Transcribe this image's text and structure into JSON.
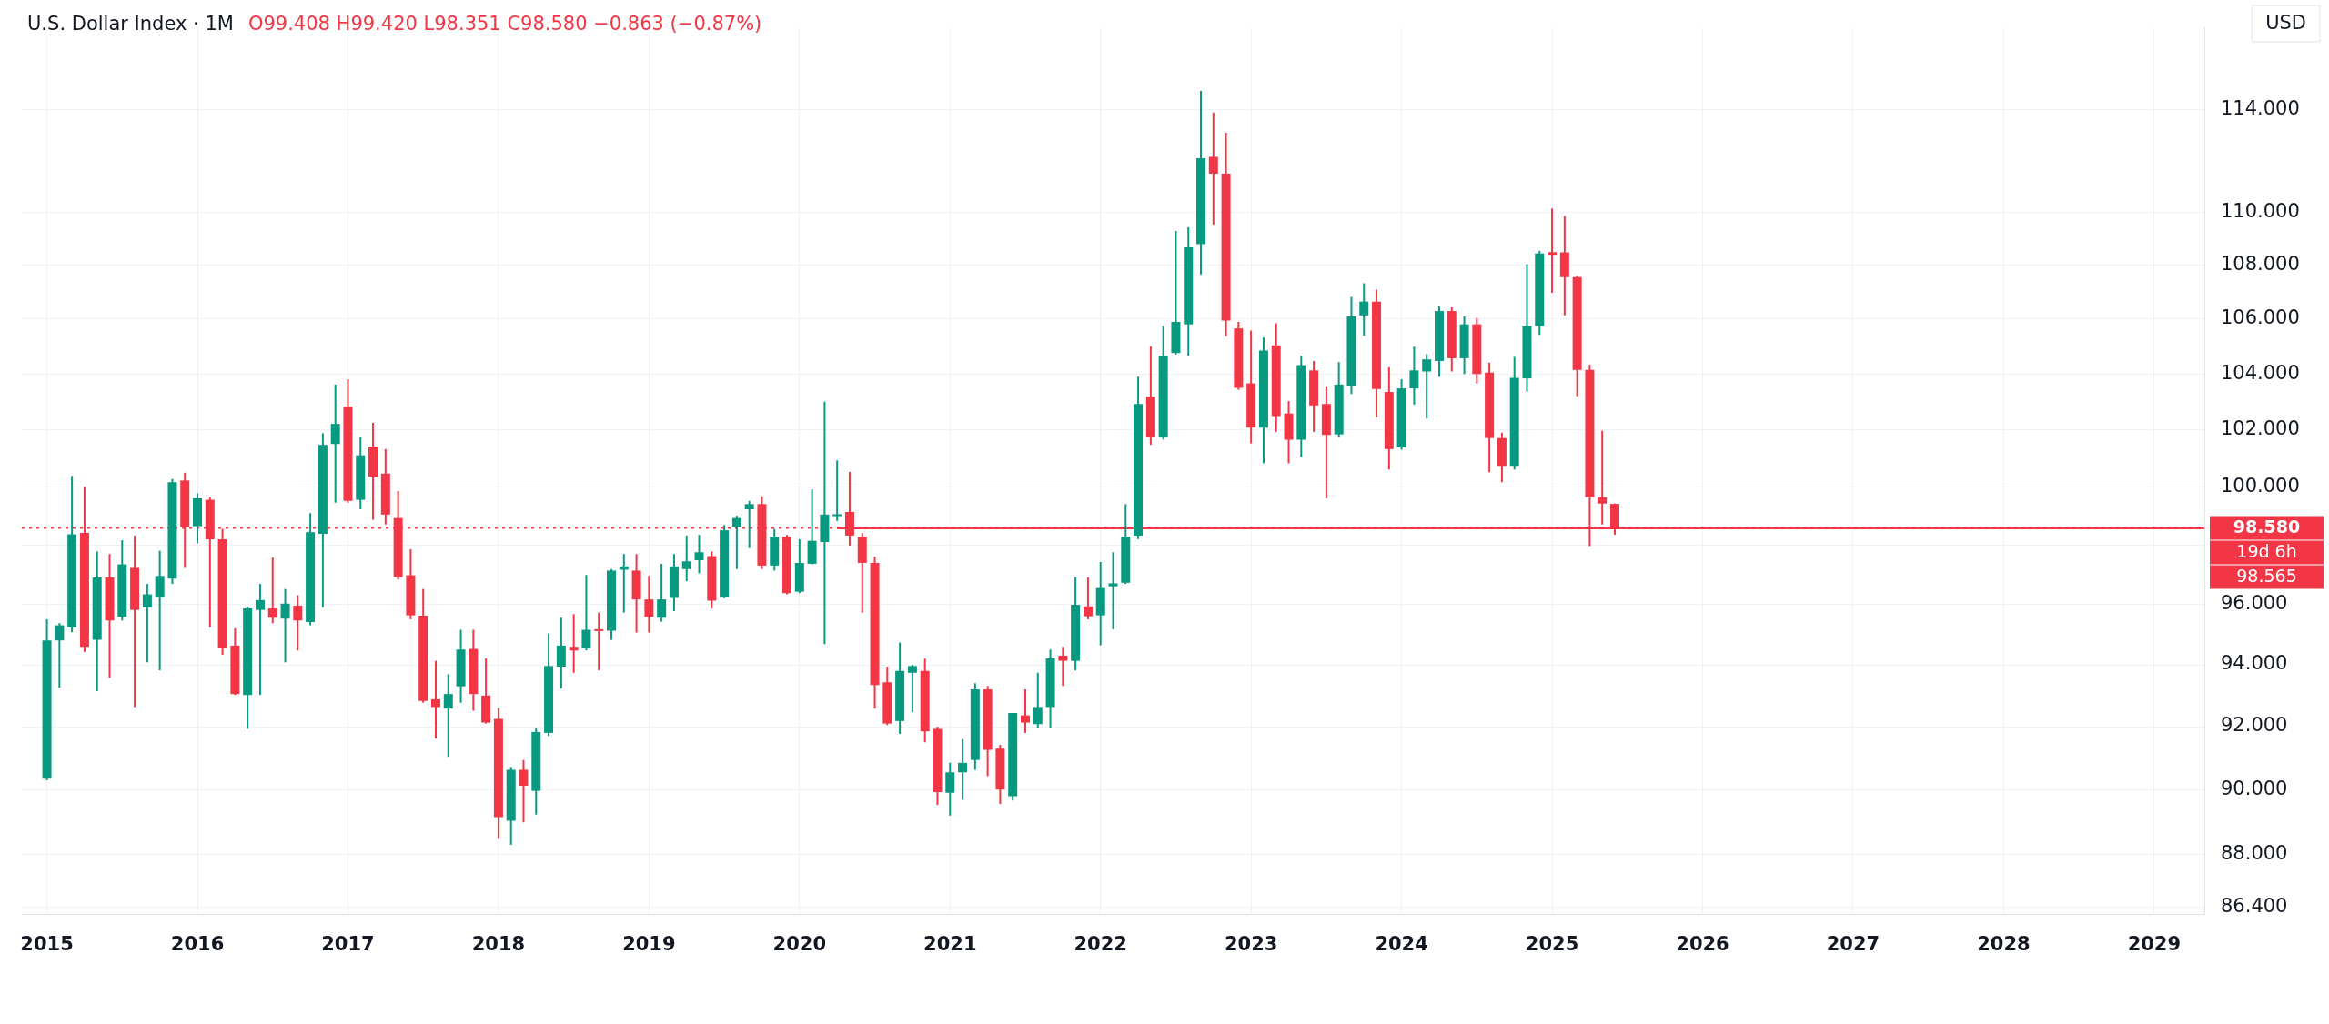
{
  "chart_data": {
    "type": "candlestick",
    "title": "U.S. Dollar Index · 1M",
    "subtitle": "O99.408 H99.420 L98.351 C98.580 −0.863 (−0.87%)",
    "ylabel": "USD",
    "x": [
      "2015-01",
      "2015-02",
      "2015-03",
      "2015-04",
      "2015-05",
      "2015-06",
      "2015-07",
      "2015-08",
      "2015-09",
      "2015-10",
      "2015-11",
      "2015-12",
      "2016-01",
      "2016-02",
      "2016-03",
      "2016-04",
      "2016-05",
      "2016-06",
      "2016-07",
      "2016-08",
      "2016-09",
      "2016-10",
      "2016-11",
      "2016-12",
      "2017-01",
      "2017-02",
      "2017-03",
      "2017-04",
      "2017-05",
      "2017-06",
      "2017-07",
      "2017-08",
      "2017-09",
      "2017-10",
      "2017-11",
      "2017-12",
      "2018-01",
      "2018-02",
      "2018-03",
      "2018-04",
      "2018-05",
      "2018-06",
      "2018-07",
      "2018-08",
      "2018-09",
      "2018-10",
      "2018-11",
      "2018-12",
      "2019-01",
      "2019-02",
      "2019-03",
      "2019-04",
      "2019-05",
      "2019-06",
      "2019-07",
      "2019-08",
      "2019-09",
      "2019-10",
      "2019-11",
      "2019-12",
      "2020-01",
      "2020-02",
      "2020-03",
      "2020-04",
      "2020-05",
      "2020-06",
      "2020-07",
      "2020-08",
      "2020-09",
      "2020-10",
      "2020-11",
      "2020-12",
      "2021-01",
      "2021-02",
      "2021-03",
      "2021-04",
      "2021-05",
      "2021-06",
      "2021-07",
      "2021-08",
      "2021-09",
      "2021-10",
      "2021-11",
      "2021-12",
      "2022-01",
      "2022-02",
      "2022-03",
      "2022-04",
      "2022-05",
      "2022-06",
      "2022-07",
      "2022-08",
      "2022-09",
      "2022-10",
      "2022-11",
      "2022-12",
      "2023-01",
      "2023-02",
      "2023-03",
      "2023-04",
      "2023-05",
      "2023-06",
      "2023-07",
      "2023-08",
      "2023-09",
      "2023-10",
      "2023-11",
      "2023-12",
      "2024-01",
      "2024-02",
      "2024-03",
      "2024-04",
      "2024-05",
      "2024-06",
      "2024-07",
      "2024-08",
      "2024-09",
      "2024-10",
      "2024-11",
      "2024-12",
      "2025-01",
      "2025-02",
      "2025-03",
      "2025-04",
      "2025-05",
      "2025-06"
    ],
    "ohlc": [
      [
        90.35,
        95.5,
        90.3,
        94.8
      ],
      [
        94.8,
        95.37,
        93.26,
        95.3
      ],
      [
        95.23,
        100.38,
        95.07,
        98.36
      ],
      [
        98.41,
        100.0,
        94.42,
        94.59
      ],
      [
        94.82,
        97.78,
        93.14,
        96.9
      ],
      [
        96.9,
        97.69,
        93.57,
        95.46
      ],
      [
        95.58,
        98.16,
        95.46,
        97.34
      ],
      [
        97.22,
        98.32,
        92.63,
        95.81
      ],
      [
        95.9,
        96.68,
        94.08,
        96.33
      ],
      [
        96.24,
        97.8,
        93.82,
        96.95
      ],
      [
        96.86,
        100.27,
        96.68,
        100.16
      ],
      [
        100.22,
        100.49,
        97.22,
        98.61
      ],
      [
        98.64,
        99.78,
        98.05,
        99.6
      ],
      [
        99.55,
        99.64,
        95.23,
        98.19
      ],
      [
        98.19,
        98.55,
        94.33,
        94.56
      ],
      [
        94.63,
        95.2,
        93.02,
        93.05
      ],
      [
        93.02,
        95.9,
        91.93,
        95.86
      ],
      [
        95.81,
        96.68,
        93.02,
        96.14
      ],
      [
        95.86,
        97.57,
        95.37,
        95.55
      ],
      [
        95.52,
        96.51,
        94.08,
        96.02
      ],
      [
        95.95,
        96.3,
        94.47,
        95.46
      ],
      [
        95.41,
        99.09,
        95.3,
        98.43
      ],
      [
        98.38,
        101.88,
        95.9,
        101.47
      ],
      [
        101.5,
        103.62,
        99.45,
        102.21
      ],
      [
        102.83,
        103.81,
        99.45,
        99.51
      ],
      [
        99.55,
        101.75,
        99.22,
        101.1
      ],
      [
        101.41,
        102.25,
        98.86,
        100.35
      ],
      [
        100.46,
        101.32,
        98.7,
        99.04
      ],
      [
        98.92,
        99.85,
        96.83,
        96.91
      ],
      [
        96.97,
        97.85,
        95.5,
        95.63
      ],
      [
        95.62,
        96.51,
        92.77,
        92.83
      ],
      [
        92.88,
        94.13,
        91.62,
        92.63
      ],
      [
        92.58,
        93.69,
        91.04,
        93.05
      ],
      [
        93.3,
        95.15,
        92.77,
        94.5
      ],
      [
        94.52,
        95.15,
        92.51,
        93.05
      ],
      [
        93.0,
        94.21,
        92.1,
        92.13
      ],
      [
        92.25,
        92.6,
        88.48,
        89.15
      ],
      [
        89.04,
        90.72,
        88.3,
        90.63
      ],
      [
        90.63,
        90.94,
        88.99,
        90.13
      ],
      [
        89.97,
        91.97,
        89.23,
        91.83
      ],
      [
        91.8,
        95.03,
        91.7,
        93.96
      ],
      [
        93.94,
        95.55,
        93.23,
        94.63
      ],
      [
        94.59,
        95.67,
        93.74,
        94.47
      ],
      [
        94.54,
        96.98,
        94.47,
        95.15
      ],
      [
        95.17,
        95.72,
        93.82,
        95.15
      ],
      [
        95.12,
        97.18,
        94.82,
        97.13
      ],
      [
        97.16,
        97.69,
        95.72,
        97.27
      ],
      [
        97.13,
        97.69,
        95.06,
        96.16
      ],
      [
        96.16,
        96.95,
        95.06,
        95.58
      ],
      [
        95.55,
        97.36,
        95.42,
        96.16
      ],
      [
        96.21,
        97.69,
        95.77,
        97.27
      ],
      [
        97.18,
        98.32,
        96.77,
        97.44
      ],
      [
        97.48,
        98.34,
        97.04,
        97.75
      ],
      [
        97.62,
        97.78,
        95.86,
        96.12
      ],
      [
        96.24,
        98.68,
        96.2,
        98.5
      ],
      [
        98.61,
        99.0,
        97.18,
        98.92
      ],
      [
        99.22,
        99.51,
        97.89,
        99.4
      ],
      [
        99.4,
        99.67,
        97.18,
        97.3
      ],
      [
        97.3,
        98.55,
        97.13,
        98.28
      ],
      [
        98.28,
        98.34,
        96.33,
        96.37
      ],
      [
        96.42,
        98.19,
        96.37,
        97.39
      ],
      [
        97.36,
        99.91,
        97.34,
        98.14
      ],
      [
        98.1,
        103.0,
        94.68,
        99.04
      ],
      [
        99.0,
        100.92,
        98.82,
        99.05
      ],
      [
        99.13,
        100.52,
        97.98,
        98.32
      ],
      [
        98.28,
        98.4,
        95.72,
        97.39
      ],
      [
        97.39,
        97.6,
        92.58,
        93.34
      ],
      [
        93.43,
        93.94,
        92.05,
        92.1
      ],
      [
        92.18,
        94.73,
        91.77,
        93.8
      ],
      [
        93.74,
        94.0,
        92.46,
        93.96
      ],
      [
        93.8,
        94.2,
        91.5,
        91.85
      ],
      [
        91.93,
        92.0,
        89.53,
        89.93
      ],
      [
        89.91,
        90.85,
        89.2,
        90.55
      ],
      [
        90.55,
        91.6,
        89.69,
        90.85
      ],
      [
        90.94,
        93.4,
        90.63,
        93.2
      ],
      [
        93.2,
        93.31,
        90.43,
        91.26
      ],
      [
        91.3,
        91.42,
        89.56,
        90.01
      ],
      [
        89.8,
        92.44,
        89.67,
        92.44
      ],
      [
        92.36,
        93.2,
        91.8,
        92.13
      ],
      [
        92.08,
        93.74,
        91.97,
        92.63
      ],
      [
        92.63,
        94.5,
        91.97,
        94.21
      ],
      [
        94.3,
        94.59,
        93.31,
        94.13
      ],
      [
        94.13,
        96.91,
        93.82,
        95.98
      ],
      [
        95.93,
        96.9,
        95.5,
        95.6
      ],
      [
        95.63,
        97.42,
        94.64,
        96.54
      ],
      [
        96.6,
        97.75,
        95.17,
        96.7
      ],
      [
        96.72,
        99.4,
        96.68,
        98.28
      ],
      [
        98.32,
        103.9,
        98.2,
        102.92
      ],
      [
        103.18,
        105.0,
        101.47,
        101.75
      ],
      [
        101.75,
        105.75,
        101.66,
        104.66
      ],
      [
        104.76,
        109.3,
        104.7,
        105.9
      ],
      [
        105.81,
        109.44,
        104.66,
        108.68
      ],
      [
        108.8,
        114.75,
        107.66,
        112.1
      ],
      [
        112.15,
        113.9,
        109.54,
        111.5
      ],
      [
        111.5,
        113.1,
        105.37,
        105.95
      ],
      [
        105.66,
        105.9,
        103.43,
        103.5
      ],
      [
        103.66,
        105.58,
        101.52,
        102.08
      ],
      [
        102.08,
        105.33,
        100.82,
        104.85
      ],
      [
        105.04,
        105.85,
        101.93,
        102.49
      ],
      [
        102.58,
        103.02,
        100.82,
        101.65
      ],
      [
        101.65,
        104.66,
        101.04,
        104.32
      ],
      [
        104.13,
        104.47,
        101.93,
        102.87
      ],
      [
        102.92,
        103.56,
        99.6,
        101.82
      ],
      [
        101.84,
        104.43,
        101.75,
        103.62
      ],
      [
        103.58,
        106.82,
        103.28,
        106.1
      ],
      [
        106.14,
        107.33,
        105.39,
        106.65
      ],
      [
        106.65,
        107.1,
        102.45,
        103.46
      ],
      [
        103.35,
        104.24,
        100.6,
        101.32
      ],
      [
        101.38,
        103.81,
        101.3,
        103.48
      ],
      [
        103.48,
        104.99,
        102.9,
        104.13
      ],
      [
        104.09,
        104.72,
        102.4,
        104.53
      ],
      [
        104.47,
        106.48,
        103.9,
        106.3
      ],
      [
        106.3,
        106.44,
        104.09,
        104.57
      ],
      [
        104.57,
        106.1,
        104.0,
        105.81
      ],
      [
        105.81,
        106.05,
        103.66,
        104.0
      ],
      [
        104.05,
        104.41,
        100.51,
        101.71
      ],
      [
        101.71,
        101.9,
        100.16,
        100.73
      ],
      [
        100.73,
        104.62,
        100.6,
        103.86
      ],
      [
        103.84,
        108.05,
        103.37,
        105.75
      ],
      [
        105.75,
        108.55,
        105.42,
        108.45
      ],
      [
        108.5,
        110.16,
        106.98,
        108.4
      ],
      [
        108.49,
        109.87,
        106.14,
        107.56
      ],
      [
        107.56,
        107.6,
        103.2,
        104.15
      ],
      [
        104.15,
        104.34,
        97.96,
        99.64
      ],
      [
        99.64,
        101.97,
        98.7,
        99.42
      ],
      [
        99.408,
        99.42,
        98.351,
        98.58
      ]
    ],
    "colors": [
      "#089981",
      "#089981",
      "#089981",
      "#f23645",
      "#089981",
      "#f23645",
      "#089981",
      "#f23645",
      "#089981",
      "#089981",
      "#089981",
      "#f23645",
      "#089981",
      "#f23645",
      "#f23645",
      "#f23645",
      "#089981",
      "#089981",
      "#f23645",
      "#089981",
      "#f23645",
      "#089981",
      "#089981",
      "#089981",
      "#f23645",
      "#089981",
      "#f23645",
      "#f23645",
      "#f23645",
      "#f23645",
      "#f23645",
      "#f23645",
      "#089981",
      "#089981",
      "#f23645",
      "#f23645",
      "#f23645",
      "#089981",
      "#f23645",
      "#089981",
      "#089981",
      "#089981",
      "#f23645",
      "#089981",
      "#f23645",
      "#089981",
      "#089981",
      "#f23645",
      "#f23645",
      "#089981",
      "#089981",
      "#089981",
      "#089981",
      "#f23645",
      "#089981",
      "#089981",
      "#089981",
      "#f23645",
      "#089981",
      "#f23645",
      "#089981",
      "#089981",
      "#089981",
      "#089981",
      "#f23645",
      "#f23645",
      "#f23645",
      "#f23645",
      "#089981",
      "#089981",
      "#f23645",
      "#f23645",
      "#089981",
      "#089981",
      "#089981",
      "#f23645",
      "#f23645",
      "#089981",
      "#f23645",
      "#089981",
      "#089981",
      "#f23645",
      "#089981",
      "#f23645",
      "#089981",
      "#089981",
      "#089981",
      "#089981",
      "#f23645",
      "#089981",
      "#089981",
      "#089981",
      "#089981",
      "#f23645",
      "#f23645",
      "#f23645",
      "#f23645",
      "#089981",
      "#f23645",
      "#f23645",
      "#089981",
      "#f23645",
      "#f23645",
      "#089981",
      "#089981",
      "#089981",
      "#f23645",
      "#f23645",
      "#089981",
      "#089981",
      "#089981",
      "#089981",
      "#f23645",
      "#089981",
      "#f23645",
      "#f23645",
      "#f23645",
      "#089981",
      "#089981",
      "#089981",
      "#f23645",
      "#f23645",
      "#f23645",
      "#f23645",
      "#f23645",
      "#f23645"
    ],
    "series": [
      {
        "type": "line",
        "x": [
          "2020-04",
          "2029-05"
        ],
        "values": [
          98.565,
          98.565
        ],
        "color": "#f23645",
        "line_style": "solid"
      }
    ],
    "ref_lines": [
      {
        "axis": "y",
        "value": 98.58,
        "label": "98.580",
        "color": "#f23645",
        "line_style": "dotted"
      }
    ],
    "annotations": [
      "19d 6h",
      "98.565"
    ],
    "xlim": [
      "2014-11",
      "2029-05"
    ],
    "xticks": [
      "2015",
      "2016",
      "2017",
      "2018",
      "2019",
      "2020",
      "2021",
      "2022",
      "2023",
      "2024",
      "2025",
      "2026",
      "2027",
      "2028",
      "2029"
    ],
    "ylim": [
      86.2,
      117.3
    ],
    "yticks": [
      {
        "value": 86.4,
        "label": "86.400"
      },
      {
        "value": 88,
        "label": "88.000"
      },
      {
        "value": 90,
        "label": "90.000"
      },
      {
        "value": 92,
        "label": "92.000"
      },
      {
        "value": 94,
        "label": "94.000"
      },
      {
        "value": 96,
        "label": "96.000"
      },
      {
        "value": 98,
        "label": null
      },
      {
        "value": 100,
        "label": "100.000"
      },
      {
        "value": 102,
        "label": "102.000"
      },
      {
        "value": 104,
        "label": "104.000"
      },
      {
        "value": 106,
        "label": "106.000"
      },
      {
        "value": 108,
        "label": "108.000"
      },
      {
        "value": 110,
        "label": "110.000"
      },
      {
        "value": 114,
        "label": "114.000"
      }
    ],
    "log": "y",
    "grid": true,
    "legend": false
  }
}
